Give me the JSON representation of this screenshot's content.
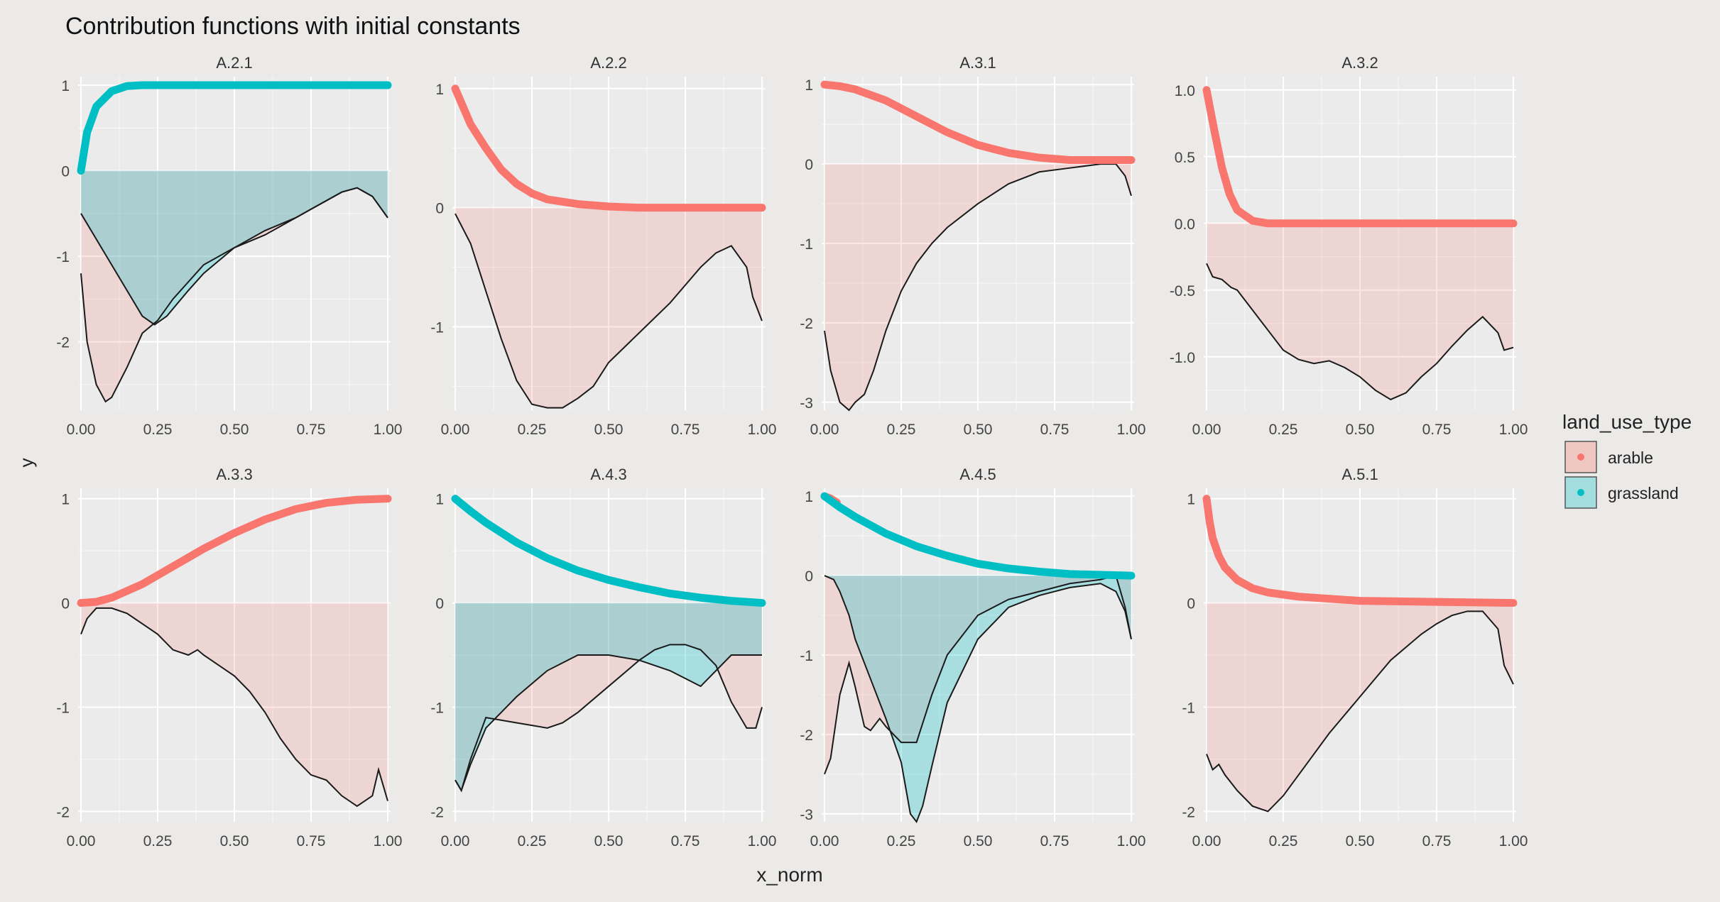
{
  "chart_data": {
    "type": "faceted-line-area",
    "title": "Contribution functions with initial constants",
    "xlabel": "x_norm",
    "ylabel": "y",
    "legend": {
      "title": "land_use_type",
      "placement": "right",
      "entries": [
        {
          "name": "arable",
          "color": "#f8766d"
        },
        {
          "name": "grassland",
          "color": "#00bfc4"
        }
      ]
    },
    "colors": {
      "arable": "#f8766d",
      "grassland": "#00bfc4",
      "panel": "#ebebeb",
      "grid": "#ffffff"
    },
    "x_ticks": [
      0,
      0.25,
      0.5,
      0.75,
      1
    ],
    "x_tick_labels": [
      "0.00",
      "0.25",
      "0.50",
      "0.75",
      "1.00"
    ],
    "panels": [
      {
        "label": "A.2.1",
        "ylim": [
          -2.8,
          1.1
        ],
        "y_ticks": [
          -2,
          -1,
          0,
          1
        ],
        "y_tick_labels": [
          "-2",
          "-1",
          "0",
          "1"
        ],
        "functions": [
          {
            "series": "grassland",
            "x": [
              0,
              0.02,
              0.05,
              0.1,
              0.15,
              0.2,
              0.3,
              0.5,
              0.75,
              1
            ],
            "y": [
              0,
              0.45,
              0.75,
              0.93,
              0.99,
              1,
              1,
              1,
              1,
              1
            ]
          }
        ],
        "contributions": [
          {
            "series": "arable",
            "x": [
              0,
              0.02,
              0.05,
              0.08,
              0.1,
              0.15,
              0.2,
              0.25,
              0.3,
              0.35,
              0.4,
              0.5,
              0.6,
              0.7,
              0.75,
              0.8,
              0.85,
              0.9,
              0.95,
              1
            ],
            "y": [
              -1.2,
              -2,
              -2.5,
              -2.7,
              -2.65,
              -2.3,
              -1.9,
              -1.75,
              -1.5,
              -1.3,
              -1.1,
              -0.9,
              -0.75,
              -0.55,
              -0.45,
              -0.35,
              -0.25,
              -0.2,
              -0.3,
              -0.55
            ]
          },
          {
            "series": "grassland",
            "x": [
              0,
              0.05,
              0.1,
              0.15,
              0.2,
              0.24,
              0.28,
              0.35,
              0.4,
              0.5,
              0.6,
              0.7,
              0.75,
              0.8,
              0.85,
              0.9,
              0.95,
              1
            ],
            "y": [
              -0.5,
              -0.8,
              -1.1,
              -1.4,
              -1.7,
              -1.8,
              -1.7,
              -1.4,
              -1.2,
              -0.9,
              -0.7,
              -0.55,
              -0.45,
              -0.35,
              -0.25,
              -0.2,
              -0.3,
              -0.55
            ]
          }
        ]
      },
      {
        "label": "A.2.2",
        "ylim": [
          -1.7,
          1.1
        ],
        "y_ticks": [
          -1,
          0,
          1
        ],
        "y_tick_labels": [
          "-1",
          "0",
          "1"
        ],
        "functions": [
          {
            "series": "arable",
            "x": [
              0,
              0.05,
              0.1,
              0.15,
              0.2,
              0.25,
              0.3,
              0.4,
              0.5,
              0.6,
              0.75,
              1
            ],
            "y": [
              1,
              0.7,
              0.5,
              0.32,
              0.2,
              0.12,
              0.07,
              0.03,
              0.01,
              0,
              0,
              0
            ]
          }
        ],
        "contributions": [
          {
            "series": "arable",
            "x": [
              0,
              0.05,
              0.1,
              0.15,
              0.2,
              0.25,
              0.3,
              0.35,
              0.4,
              0.45,
              0.5,
              0.6,
              0.7,
              0.75,
              0.8,
              0.85,
              0.9,
              0.95,
              0.97,
              1
            ],
            "y": [
              -0.05,
              -0.3,
              -0.7,
              -1.1,
              -1.45,
              -1.65,
              -1.68,
              -1.68,
              -1.6,
              -1.5,
              -1.3,
              -1.05,
              -0.8,
              -0.65,
              -0.5,
              -0.38,
              -0.32,
              -0.5,
              -0.75,
              -0.95
            ]
          }
        ]
      },
      {
        "label": "A.3.1",
        "ylim": [
          -3.1,
          1.1
        ],
        "y_ticks": [
          -3,
          -2,
          -1,
          0,
          1
        ],
        "y_tick_labels": [
          "-3",
          "-2",
          "-1",
          "0",
          "1"
        ],
        "functions": [
          {
            "series": "arable",
            "x": [
              0,
              0.05,
              0.1,
              0.2,
              0.3,
              0.4,
              0.5,
              0.6,
              0.7,
              0.8,
              0.9,
              1
            ],
            "y": [
              1,
              0.98,
              0.94,
              0.8,
              0.6,
              0.4,
              0.24,
              0.14,
              0.08,
              0.05,
              0.05,
              0.05
            ]
          }
        ],
        "contributions": [
          {
            "series": "arable",
            "x": [
              0,
              0.02,
              0.05,
              0.08,
              0.1,
              0.13,
              0.16,
              0.2,
              0.25,
              0.3,
              0.35,
              0.4,
              0.5,
              0.6,
              0.7,
              0.8,
              0.9,
              0.95,
              0.98,
              1
            ],
            "y": [
              -2.1,
              -2.6,
              -3,
              -3.1,
              -3,
              -2.9,
              -2.6,
              -2.1,
              -1.6,
              -1.25,
              -1,
              -0.8,
              -0.5,
              -0.25,
              -0.1,
              -0.05,
              0,
              0,
              -0.15,
              -0.4
            ]
          }
        ]
      },
      {
        "label": "A.3.2",
        "ylim": [
          -1.4,
          1.1
        ],
        "y_ticks": [
          -1.0,
          -0.5,
          0.0,
          0.5,
          1.0
        ],
        "y_tick_labels": [
          "-1.0",
          "-0.5",
          "0.0",
          "0.5",
          "1.0"
        ],
        "functions": [
          {
            "series": "arable",
            "x": [
              0,
              0.025,
              0.05,
              0.075,
              0.1,
              0.15,
              0.2,
              0.3,
              0.5,
              0.75,
              1
            ],
            "y": [
              1,
              0.7,
              0.42,
              0.22,
              0.1,
              0.02,
              0,
              0,
              0,
              0,
              0
            ]
          }
        ],
        "contributions": [
          {
            "series": "arable",
            "x": [
              0,
              0.02,
              0.05,
              0.08,
              0.1,
              0.15,
              0.2,
              0.25,
              0.3,
              0.35,
              0.4,
              0.45,
              0.5,
              0.55,
              0.6,
              0.65,
              0.7,
              0.75,
              0.8,
              0.85,
              0.9,
              0.95,
              0.97,
              1
            ],
            "y": [
              -0.3,
              -0.4,
              -0.42,
              -0.48,
              -0.5,
              -0.65,
              -0.8,
              -0.95,
              -1.02,
              -1.05,
              -1.03,
              -1.08,
              -1.15,
              -1.25,
              -1.32,
              -1.27,
              -1.15,
              -1.05,
              -0.92,
              -0.8,
              -0.7,
              -0.82,
              -0.95,
              -0.93
            ]
          }
        ]
      },
      {
        "label": "A.3.3",
        "ylim": [
          -2.1,
          1.1
        ],
        "y_ticks": [
          -2,
          -1,
          0,
          1
        ],
        "y_tick_labels": [
          "-2",
          "-1",
          "0",
          "1"
        ],
        "functions": [
          {
            "series": "arable",
            "x": [
              0,
              0.05,
              0.1,
              0.2,
              0.3,
              0.4,
              0.5,
              0.6,
              0.7,
              0.8,
              0.9,
              1
            ],
            "y": [
              0,
              0.01,
              0.05,
              0.18,
              0.35,
              0.52,
              0.67,
              0.8,
              0.9,
              0.96,
              0.99,
              1
            ]
          }
        ],
        "contributions": [
          {
            "series": "arable",
            "x": [
              0,
              0.02,
              0.05,
              0.1,
              0.15,
              0.2,
              0.25,
              0.3,
              0.35,
              0.38,
              0.4,
              0.45,
              0.5,
              0.55,
              0.6,
              0.65,
              0.7,
              0.75,
              0.8,
              0.85,
              0.9,
              0.95,
              0.97,
              1
            ],
            "y": [
              -0.3,
              -0.15,
              -0.05,
              -0.05,
              -0.1,
              -0.2,
              -0.3,
              -0.45,
              -0.5,
              -0.45,
              -0.5,
              -0.6,
              -0.7,
              -0.85,
              -1.05,
              -1.3,
              -1.5,
              -1.65,
              -1.7,
              -1.85,
              -1.95,
              -1.85,
              -1.6,
              -1.9
            ]
          }
        ]
      },
      {
        "label": "A.4.3",
        "ylim": [
          -2.1,
          1.1
        ],
        "y_ticks": [
          -2,
          -1,
          0,
          1
        ],
        "y_tick_labels": [
          "-2",
          "-1",
          "0",
          "1"
        ],
        "functions": [
          {
            "series": "grassland",
            "x": [
              0,
              0.05,
              0.1,
              0.2,
              0.3,
              0.4,
              0.5,
              0.6,
              0.7,
              0.8,
              0.9,
              1
            ],
            "y": [
              1,
              0.88,
              0.77,
              0.58,
              0.43,
              0.31,
              0.22,
              0.15,
              0.09,
              0.05,
              0.02,
              0
            ]
          }
        ],
        "contributions": [
          {
            "series": "arable",
            "x": [
              0,
              0.02,
              0.05,
              0.1,
              0.2,
              0.3,
              0.35,
              0.4,
              0.5,
              0.6,
              0.65,
              0.7,
              0.75,
              0.8,
              0.85,
              0.9,
              0.95,
              0.98,
              1
            ],
            "y": [
              -1.7,
              -1.8,
              -1.5,
              -1.1,
              -1.15,
              -1.2,
              -1.15,
              -1.05,
              -0.8,
              -0.55,
              -0.45,
              -0.4,
              -0.4,
              -0.45,
              -0.6,
              -0.95,
              -1.2,
              -1.2,
              -1
            ]
          },
          {
            "series": "grassland",
            "x": [
              0,
              0.02,
              0.05,
              0.1,
              0.15,
              0.2,
              0.3,
              0.4,
              0.5,
              0.6,
              0.7,
              0.8,
              0.9,
              0.95,
              1
            ],
            "y": [
              -1.7,
              -1.8,
              -1.55,
              -1.2,
              -1.05,
              -0.9,
              -0.65,
              -0.5,
              -0.5,
              -0.55,
              -0.65,
              -0.8,
              -0.5,
              -0.5,
              -0.5
            ]
          }
        ]
      },
      {
        "label": "A.4.5",
        "ylim": [
          -3.1,
          1.1
        ],
        "y_ticks": [
          -3,
          -2,
          -1,
          0,
          1
        ],
        "y_tick_labels": [
          "-3",
          "-2",
          "-1",
          "0",
          "1"
        ],
        "functions": [
          {
            "series": "arable",
            "x": [
              0,
              0.02,
              0.04
            ],
            "y": [
              1,
              0.97,
              0.92
            ]
          },
          {
            "series": "grassland",
            "x": [
              0,
              0.05,
              0.1,
              0.2,
              0.3,
              0.4,
              0.5,
              0.6,
              0.7,
              0.8,
              0.9,
              1
            ],
            "y": [
              1,
              0.86,
              0.74,
              0.53,
              0.37,
              0.25,
              0.15,
              0.09,
              0.05,
              0.02,
              0.01,
              0
            ]
          }
        ],
        "contributions": [
          {
            "series": "arable",
            "x": [
              0,
              0.02,
              0.05,
              0.08,
              0.1,
              0.13,
              0.15,
              0.18,
              0.2,
              0.25,
              0.3,
              0.35,
              0.4,
              0.5,
              0.6,
              0.7,
              0.8,
              0.9,
              0.95,
              0.98,
              1
            ],
            "y": [
              -2.5,
              -2.3,
              -1.5,
              -1.1,
              -1.4,
              -1.9,
              -1.95,
              -1.8,
              -1.9,
              -2.1,
              -2.1,
              -1.5,
              -1,
              -0.5,
              -0.3,
              -0.2,
              -0.1,
              -0.05,
              0,
              -0.4,
              -0.8
            ]
          },
          {
            "series": "grassland",
            "x": [
              0,
              0.03,
              0.05,
              0.08,
              0.1,
              0.15,
              0.2,
              0.25,
              0.28,
              0.3,
              0.32,
              0.35,
              0.4,
              0.5,
              0.6,
              0.7,
              0.8,
              0.9,
              0.95,
              0.98,
              1
            ],
            "y": [
              0,
              -0.05,
              -0.2,
              -0.5,
              -0.8,
              -1.3,
              -1.8,
              -2.35,
              -3,
              -3.1,
              -2.9,
              -2.4,
              -1.6,
              -0.8,
              -0.4,
              -0.25,
              -0.15,
              -0.1,
              -0.2,
              -0.45,
              -0.8
            ]
          }
        ]
      },
      {
        "label": "A.5.1",
        "ylim": [
          -2.1,
          1.1
        ],
        "y_ticks": [
          -2,
          -1,
          0,
          1
        ],
        "y_tick_labels": [
          "-2",
          "-1",
          "0",
          "1"
        ],
        "functions": [
          {
            "series": "arable",
            "x": [
              0,
              0.01,
              0.02,
              0.04,
              0.06,
              0.1,
              0.15,
              0.2,
              0.3,
              0.4,
              0.5,
              0.75,
              1
            ],
            "y": [
              1,
              0.78,
              0.62,
              0.45,
              0.34,
              0.22,
              0.14,
              0.1,
              0.06,
              0.04,
              0.02,
              0.01,
              0
            ]
          }
        ],
        "contributions": [
          {
            "series": "arable",
            "x": [
              0,
              0.02,
              0.04,
              0.06,
              0.1,
              0.15,
              0.2,
              0.25,
              0.3,
              0.35,
              0.4,
              0.5,
              0.6,
              0.7,
              0.75,
              0.8,
              0.85,
              0.9,
              0.95,
              0.97,
              1
            ],
            "y": [
              -1.45,
              -1.6,
              -1.55,
              -1.65,
              -1.8,
              -1.95,
              -2,
              -1.85,
              -1.65,
              -1.45,
              -1.25,
              -0.9,
              -0.55,
              -0.3,
              -0.2,
              -0.12,
              -0.08,
              -0.08,
              -0.25,
              -0.6,
              -0.78
            ]
          }
        ]
      }
    ]
  }
}
